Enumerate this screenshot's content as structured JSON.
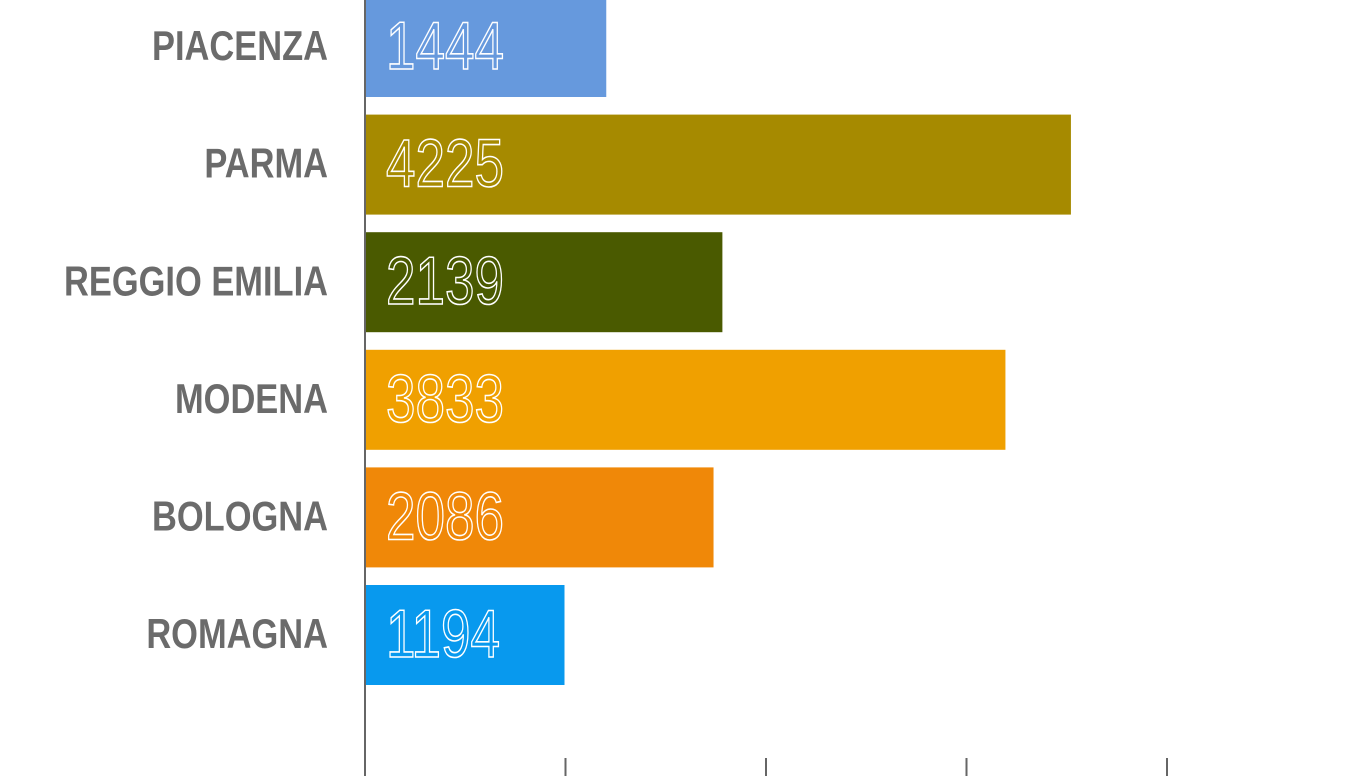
{
  "chart_data": {
    "type": "barh",
    "categories": [
      "PIACENZA",
      "PARMA",
      "REGGIO EMILIA",
      "MODENA",
      "BOLOGNA",
      "ROMAGNA"
    ],
    "values": [
      1444,
      4225,
      2139,
      3833,
      2086,
      1194
    ],
    "colors": [
      "#6699dd",
      "#a68a00",
      "#4a5a00",
      "#f0a000",
      "#f08808",
      "#0899ee"
    ],
    "xlim": [
      0,
      4800
    ],
    "xticks": [
      0,
      1200,
      2400,
      3600,
      4800
    ]
  }
}
